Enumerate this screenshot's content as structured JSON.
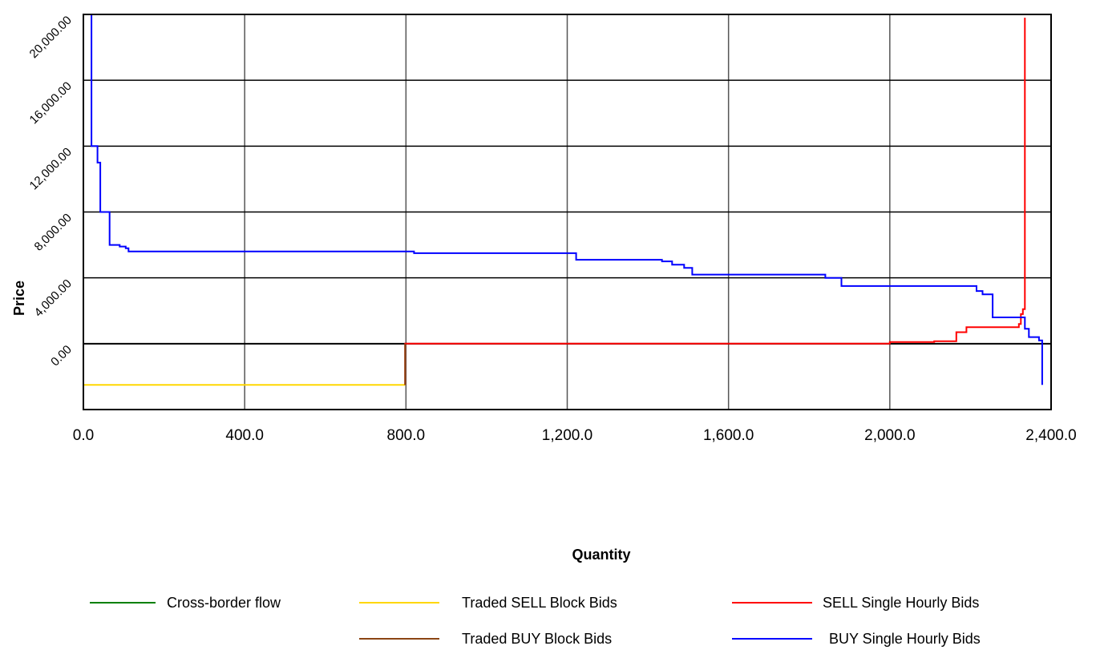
{
  "chart_data": {
    "type": "line",
    "xlabel": "Quantity",
    "ylabel": "Price",
    "xlim": [
      0,
      2400
    ],
    "ylim": [
      -4000,
      20000
    ],
    "x_ticks": [
      0,
      400,
      800,
      1200,
      1600,
      2000,
      2400
    ],
    "x_tick_labels": [
      "0.0",
      "400.0",
      "800.0",
      "1,200.0",
      "1,600.0",
      "2,000.0",
      "2,400.0"
    ],
    "y_ticks": [
      0,
      4000,
      8000,
      12000,
      16000,
      20000
    ],
    "y_tick_labels": [
      "0.00",
      "4,000.00",
      "8,000.00",
      "12,000.00",
      "16,000.00",
      "20,000.00"
    ],
    "grid": true,
    "legend_position": "bottom",
    "series": [
      {
        "name": "Cross-border flow",
        "color": "#008000",
        "points": []
      },
      {
        "name": "Traded SELL Block Bids",
        "color": "#ffd700",
        "points": [
          [
            0,
            -2500
          ],
          [
            798,
            -2500
          ]
        ]
      },
      {
        "name": "SELL Single Hourly Bids",
        "color": "#ff0000",
        "points": [
          [
            798,
            -2500
          ],
          [
            798,
            0
          ],
          [
            2000,
            0
          ],
          [
            2000,
            100
          ],
          [
            2110,
            100
          ],
          [
            2110,
            150
          ],
          [
            2165,
            150
          ],
          [
            2165,
            700
          ],
          [
            2190,
            700
          ],
          [
            2190,
            1000
          ],
          [
            2320,
            1000
          ],
          [
            2320,
            1200
          ],
          [
            2325,
            1200
          ],
          [
            2325,
            1800
          ],
          [
            2330,
            1800
          ],
          [
            2330,
            2100
          ],
          [
            2335,
            2100
          ],
          [
            2335,
            19800
          ]
        ]
      },
      {
        "name": "Traded BUY Block Bids",
        "color": "#8b4513",
        "points": [
          [
            798,
            -2500
          ],
          [
            798,
            0
          ]
        ]
      },
      {
        "name": "BUY Single Hourly Bids",
        "color": "#0000ff",
        "points": [
          [
            20,
            20000
          ],
          [
            20,
            12000
          ],
          [
            35,
            12000
          ],
          [
            35,
            11000
          ],
          [
            42,
            11000
          ],
          [
            42,
            8000
          ],
          [
            65,
            8000
          ],
          [
            65,
            6000
          ],
          [
            90,
            6000
          ],
          [
            90,
            5900
          ],
          [
            105,
            5900
          ],
          [
            105,
            5800
          ],
          [
            112,
            5800
          ],
          [
            112,
            5600
          ],
          [
            820,
            5600
          ],
          [
            820,
            5500
          ],
          [
            1222,
            5500
          ],
          [
            1222,
            5100
          ],
          [
            1435,
            5100
          ],
          [
            1435,
            5000
          ],
          [
            1460,
            5000
          ],
          [
            1460,
            4800
          ],
          [
            1490,
            4800
          ],
          [
            1490,
            4600
          ],
          [
            1510,
            4600
          ],
          [
            1510,
            4200
          ],
          [
            1840,
            4200
          ],
          [
            1840,
            4000
          ],
          [
            1880,
            4000
          ],
          [
            1880,
            3500
          ],
          [
            2215,
            3500
          ],
          [
            2215,
            3200
          ],
          [
            2230,
            3200
          ],
          [
            2230,
            3000
          ],
          [
            2255,
            3000
          ],
          [
            2255,
            1600
          ],
          [
            2335,
            1600
          ],
          [
            2335,
            900
          ],
          [
            2345,
            900
          ],
          [
            2345,
            400
          ],
          [
            2370,
            400
          ],
          [
            2370,
            200
          ],
          [
            2378,
            200
          ],
          [
            2378,
            -2500
          ]
        ]
      }
    ]
  },
  "legend": [
    {
      "name": "Cross-border flow",
      "color": "#008000"
    },
    {
      "name": "Traded SELL Block Bids",
      "color": "#ffd700"
    },
    {
      "name": "SELL Single Hourly Bids",
      "color": "#ff0000"
    },
    {
      "name": "Traded BUY Block Bids",
      "color": "#8b4513"
    },
    {
      "name": "BUY Single Hourly Bids",
      "color": "#0000ff"
    }
  ]
}
